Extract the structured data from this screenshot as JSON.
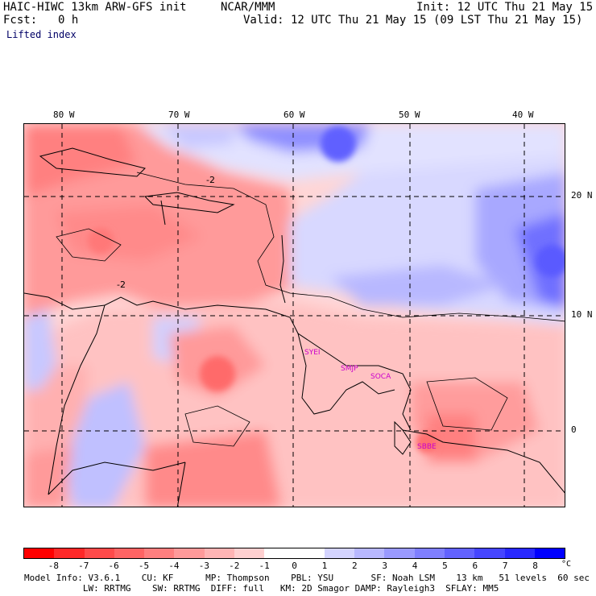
{
  "header": {
    "model": "HAIC-HIWC 13km ARW-GFS init",
    "center": "NCAR/MMM",
    "init": "Init: 12 UTC Thu 21 May 15",
    "fcst_label": "Fcst:",
    "fcst_value": "0 h",
    "valid": "Valid: 12 UTC Thu 21 May 15 (09 LST Thu 21 May 15)",
    "field": "Lifted index"
  },
  "map": {
    "lon_ticks": [
      "80 W",
      "70 W",
      "60 W",
      "50 W",
      "40 W"
    ],
    "lat_ticks": [
      "20 N",
      "10 N",
      "0"
    ],
    "contour_labels": [
      "-2",
      "-2"
    ],
    "stations": [
      "SYEI",
      "SMJP",
      "SOCA",
      "SBBE"
    ],
    "colors": {
      "strong_neg": "#ff1a1a",
      "mid_neg": "#ff8080",
      "weak_neg": "#ffcaca",
      "weak_pos": "#dcdcff",
      "mid_pos": "#9a9aff",
      "strong_pos": "#3a3aff"
    }
  },
  "colorbar": {
    "labels": [
      "-8",
      "-7",
      "-6",
      "-5",
      "-4",
      "-3",
      "-2",
      "-1",
      "0",
      "1",
      "2",
      "3",
      "4",
      "5",
      "6",
      "7",
      "8"
    ],
    "unit": "°C",
    "colors": [
      "#ff0000",
      "#ff2828",
      "#ff4a4a",
      "#ff6464",
      "#ff7f7f",
      "#ff9a9a",
      "#ffb4b4",
      "#ffd0d0",
      "#ffffff",
      "#ffffff",
      "#d4d4ff",
      "#b8b8ff",
      "#9a9aff",
      "#7f7fff",
      "#6262ff",
      "#4545ff",
      "#2828ff",
      "#0000ff"
    ]
  },
  "footer": {
    "line1": "Model Info: V3.6.1    CU: KF      MP: Thompson    PBL: YSU       SF: Noah LSM    13 km   51 levels  60 sec",
    "line2": "           LW: RRTMG    SW: RRTMG  DIFF: full   KM: 2D Smagor DAMP: Rayleigh3  SFLAY: MM5"
  }
}
